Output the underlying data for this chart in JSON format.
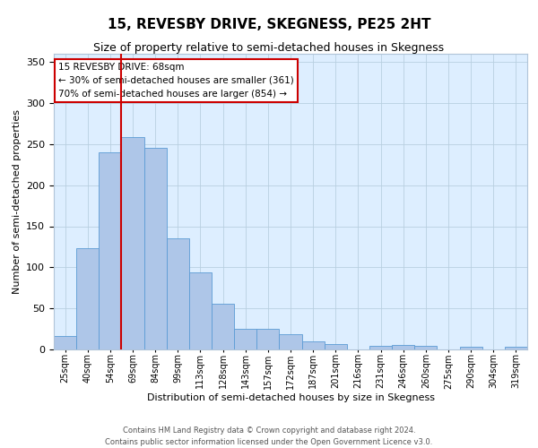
{
  "title": "15, REVESBY DRIVE, SKEGNESS, PE25 2HT",
  "subtitle": "Size of property relative to semi-detached houses in Skegness",
  "xlabel": "Distribution of semi-detached houses by size in Skegness",
  "ylabel": "Number of semi-detached properties",
  "categories": [
    "25sqm",
    "40sqm",
    "54sqm",
    "69sqm",
    "84sqm",
    "99sqm",
    "113sqm",
    "128sqm",
    "143sqm",
    "157sqm",
    "172sqm",
    "187sqm",
    "201sqm",
    "216sqm",
    "231sqm",
    "246sqm",
    "260sqm",
    "275sqm",
    "290sqm",
    "304sqm",
    "319sqm"
  ],
  "values": [
    16,
    123,
    240,
    258,
    245,
    135,
    94,
    56,
    25,
    25,
    19,
    10,
    7,
    0,
    4,
    5,
    4,
    0,
    3,
    0,
    3
  ],
  "bar_color": "#aec6e8",
  "bar_edge_color": "#5b9bd5",
  "vline_pos": 2.5,
  "vline_color": "#cc0000",
  "annotation_title": "15 REVESBY DRIVE: 68sqm",
  "annotation_line1": "← 30% of semi-detached houses are smaller (361)",
  "annotation_line2": "70% of semi-detached houses are larger (854) →",
  "annotation_box_color": "#ffffff",
  "annotation_box_edge": "#cc0000",
  "footer1": "Contains HM Land Registry data © Crown copyright and database right 2024.",
  "footer2": "Contains public sector information licensed under the Open Government Licence v3.0.",
  "background_color": "#ddeeff",
  "ylim": [
    0,
    360
  ],
  "title_fontsize": 11,
  "subtitle_fontsize": 9,
  "ylabel_fontsize": 8,
  "xlabel_fontsize": 8,
  "tick_fontsize": 7,
  "annot_fontsize": 7.5,
  "footer_fontsize": 6
}
